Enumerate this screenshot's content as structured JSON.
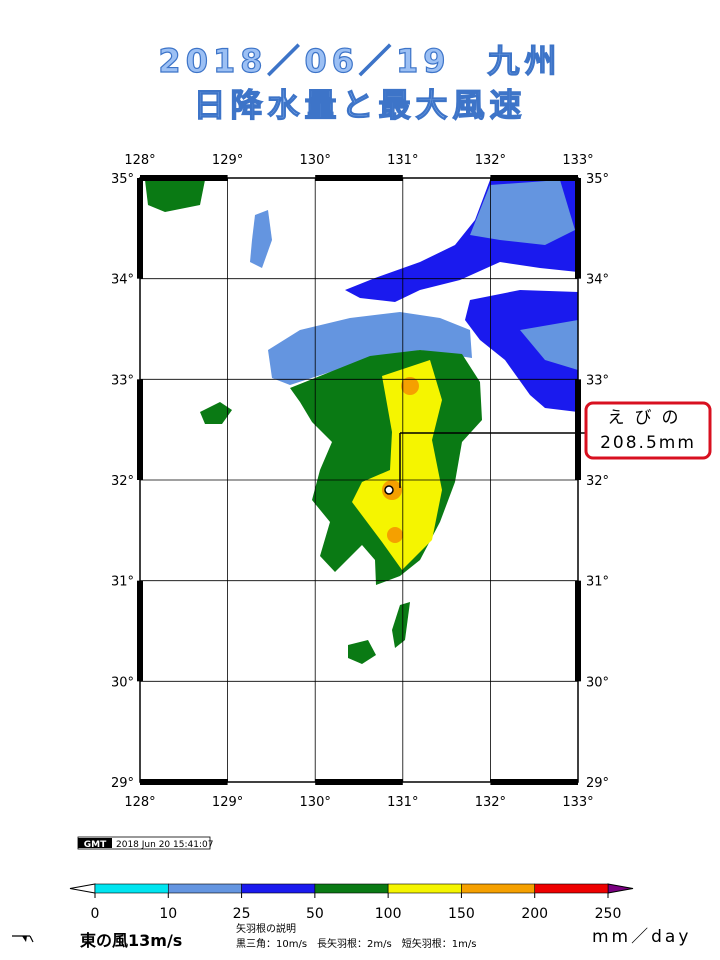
{
  "header": {
    "title_line1": "2018／06／19　九州",
    "title_line2": "日降水量と最大風速"
  },
  "map": {
    "lon_labels": [
      "128°",
      "129°",
      "130°",
      "131°",
      "132°",
      "133°"
    ],
    "lat_labels": [
      "35°",
      "34°",
      "33°",
      "32°",
      "31°",
      "30°",
      "29°"
    ],
    "annotation": {
      "station": "えびの",
      "value": "208.5mm"
    }
  },
  "footer": {
    "logo": "GMT",
    "timestamp": "2018 Jun 20 15:41:07"
  },
  "colorbar": {
    "ticks": [
      "0",
      "10",
      "25",
      "50",
      "100",
      "150",
      "200",
      "250"
    ],
    "colors": [
      "#00e5f0",
      "#6495e0",
      "#1a1aee",
      "#0a7a14",
      "#f5f500",
      "#f5a000",
      "#ee0000"
    ],
    "over_color": "#7a0080",
    "unit": "mm／day"
  },
  "legend": {
    "wind_sample": "東の風13m/s",
    "barb_title": "矢羽根の説明",
    "barb_desc": "黒三角：10m/s　長矢羽根：2m/s　短矢羽根：1m/s"
  }
}
